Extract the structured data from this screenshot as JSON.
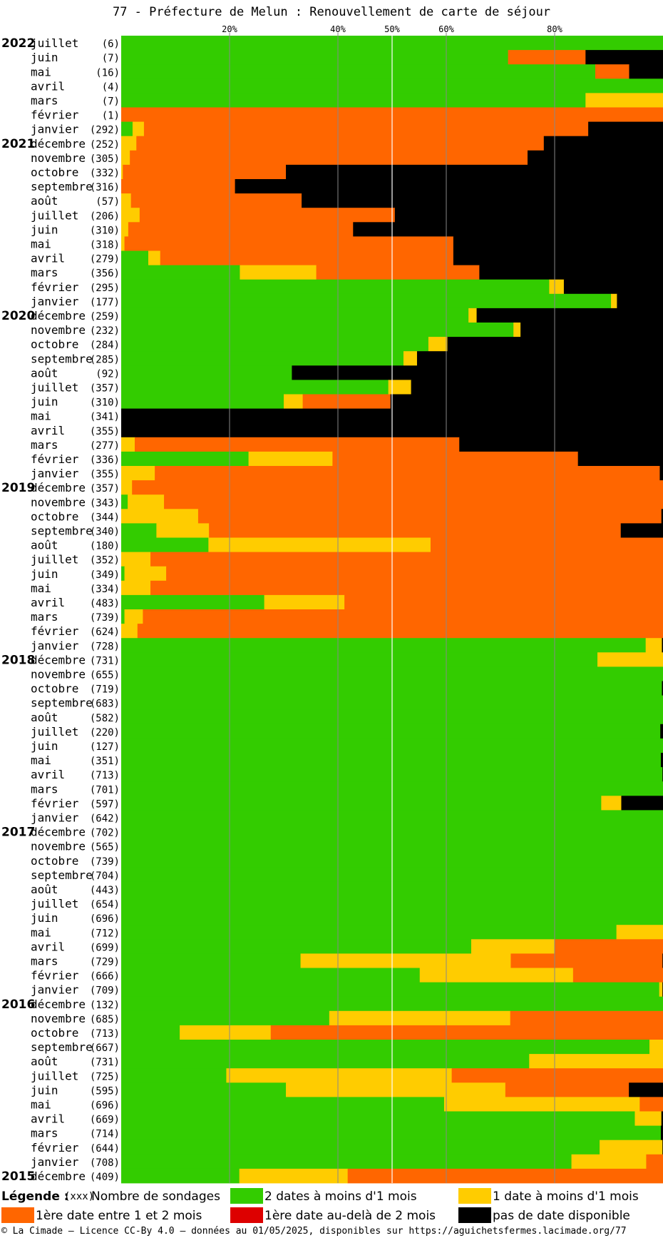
{
  "title": "77 - Préfecture de Melun : Renouvellement de carte de séjour",
  "colors": {
    "green": "#33cc00",
    "yellow": "#ffcc00",
    "orange": "#ff6600",
    "red": "#dd0000",
    "black": "#000000",
    "gridline": "#888888",
    "gridline50": "#ffffff"
  },
  "legend": {
    "label": "Légende :",
    "count_symbol": "(xxx)",
    "count_label": "Nombre de sondages",
    "items": [
      {
        "label": "2 dates à moins d'1 mois",
        "color": "#33cc00"
      },
      {
        "label": "1 date à moins d'1 mois",
        "color": "#ffcc00"
      },
      {
        "label": "1ère date entre 1 et 2 mois",
        "color": "#ff6600"
      },
      {
        "label": "1ère date au-delà de 2 mois",
        "color": "#dd0000"
      },
      {
        "label": "pas de date disponible",
        "color": "#000000"
      }
    ]
  },
  "footer": "© La Cimade – Licence CC-By 4.0 – données au 01/05/2025, disponibles sur https://aguichetsfermes.lacimade.org/77",
  "chart_data": {
    "type": "bar",
    "orientation": "horizontal",
    "stacked": true,
    "percent_stacked": true,
    "x_ticks": [
      "20%",
      "40%",
      "50%",
      "60%",
      "80%"
    ],
    "x_tick_values": [
      20,
      40,
      50,
      60,
      80
    ],
    "xlim": [
      0,
      100
    ],
    "series_order": [
      "2 dates à moins d'1 mois",
      "1 date à moins d'1 mois",
      "1ère date entre 1 et 2 mois",
      "1ère date au-delà de 2 mois",
      "pas de date disponible"
    ],
    "rows": [
      {
        "year": "2022",
        "month": "juillet",
        "count": "(6)",
        "values": [
          100,
          0,
          0,
          0,
          0
        ]
      },
      {
        "year": "",
        "month": "juin",
        "count": "(7)",
        "values": [
          71.4,
          0,
          14.3,
          0,
          14.3
        ]
      },
      {
        "year": "",
        "month": "mai",
        "count": "(16)",
        "values": [
          87.5,
          0,
          6.25,
          0,
          6.25
        ]
      },
      {
        "year": "",
        "month": "avril",
        "count": "(4)",
        "values": [
          100,
          0,
          0,
          0,
          0
        ]
      },
      {
        "year": "",
        "month": "mars",
        "count": "(7)",
        "values": [
          85.7,
          14.3,
          0,
          0,
          0
        ]
      },
      {
        "year": "",
        "month": "février",
        "count": "(1)",
        "values": [
          0,
          0,
          100,
          0,
          0
        ]
      },
      {
        "year": "",
        "month": "janvier",
        "count": "(292)",
        "values": [
          2.1,
          2.1,
          82,
          0,
          13.8
        ]
      },
      {
        "year": "2021",
        "month": "décembre",
        "count": "(252)",
        "values": [
          0,
          2.8,
          75.2,
          0,
          22
        ]
      },
      {
        "year": "",
        "month": "novembre",
        "count": "(305)",
        "values": [
          0,
          1.6,
          73.4,
          0,
          25
        ]
      },
      {
        "year": "",
        "month": "octobre",
        "count": "(332)",
        "values": [
          0,
          0.3,
          30.1,
          0,
          69.6
        ]
      },
      {
        "year": "",
        "month": "septembre",
        "count": "(316)",
        "values": [
          0,
          0,
          21,
          0,
          79
        ]
      },
      {
        "year": "",
        "month": "août",
        "count": "(57)",
        "values": [
          0,
          1.8,
          31.5,
          0,
          66.7
        ]
      },
      {
        "year": "",
        "month": "juillet",
        "count": "(206)",
        "values": [
          0,
          3.4,
          47.1,
          0,
          49.5
        ]
      },
      {
        "year": "",
        "month": "juin",
        "count": "(310)",
        "values": [
          0,
          1.3,
          41.5,
          0,
          57.2
        ]
      },
      {
        "year": "",
        "month": "mai",
        "count": "(318)",
        "values": [
          0,
          0.6,
          60.7,
          0,
          38.7
        ]
      },
      {
        "year": "",
        "month": "avril",
        "count": "(279)",
        "values": [
          5,
          2.2,
          54.1,
          0,
          38.7
        ]
      },
      {
        "year": "",
        "month": "mars",
        "count": "(356)",
        "values": [
          21.9,
          14.1,
          30.1,
          0,
          33.9
        ]
      },
      {
        "year": "",
        "month": "février",
        "count": "(295)",
        "values": [
          79,
          2.7,
          0,
          0,
          18.3
        ]
      },
      {
        "year": "",
        "month": "janvier",
        "count": "(177)",
        "values": [
          90.4,
          1.1,
          0,
          0,
          8.5
        ]
      },
      {
        "year": "2020",
        "month": "décembre",
        "count": "(259)",
        "values": [
          64.1,
          1.5,
          0,
          0,
          34.4
        ]
      },
      {
        "year": "",
        "month": "novembre",
        "count": "(232)",
        "values": [
          72.4,
          1.3,
          0,
          0,
          26.3
        ]
      },
      {
        "year": "",
        "month": "octobre",
        "count": "(284)",
        "values": [
          56.7,
          3.5,
          0,
          0,
          39.8
        ]
      },
      {
        "year": "",
        "month": "septembre",
        "count": "(285)",
        "values": [
          52.1,
          2.5,
          0,
          0,
          45.4
        ]
      },
      {
        "year": "",
        "month": "août",
        "count": "(92)",
        "values": [
          31.5,
          0,
          0,
          0,
          68.5
        ]
      },
      {
        "year": "",
        "month": "juillet",
        "count": "(357)",
        "values": [
          49.3,
          4.2,
          0,
          0,
          46.5
        ]
      },
      {
        "year": "",
        "month": "juin",
        "count": "(310)",
        "values": [
          30,
          3.5,
          16.2,
          0,
          50.3
        ]
      },
      {
        "year": "",
        "month": "mai",
        "count": "(341)",
        "values": [
          0,
          0,
          0,
          0,
          100
        ]
      },
      {
        "year": "",
        "month": "avril",
        "count": "(355)",
        "values": [
          0,
          0,
          0,
          0,
          100
        ]
      },
      {
        "year": "",
        "month": "mars",
        "count": "(277)",
        "values": [
          0,
          2.5,
          59.9,
          0,
          37.6
        ]
      },
      {
        "year": "",
        "month": "février",
        "count": "(336)",
        "values": [
          23.5,
          15.5,
          45.3,
          0,
          15.7
        ]
      },
      {
        "year": "",
        "month": "janvier",
        "count": "(355)",
        "values": [
          0,
          6.2,
          93.2,
          0,
          0.6
        ]
      },
      {
        "year": "2019",
        "month": "décembre",
        "count": "(357)",
        "values": [
          0,
          2,
          98,
          0,
          0
        ]
      },
      {
        "year": "",
        "month": "novembre",
        "count": "(343)",
        "values": [
          1.2,
          6.7,
          92.1,
          0,
          0
        ]
      },
      {
        "year": "",
        "month": "octobre",
        "count": "(344)",
        "values": [
          0,
          14.2,
          85.5,
          0,
          0.3
        ]
      },
      {
        "year": "",
        "month": "septembre",
        "count": "(340)",
        "values": [
          6.5,
          9.7,
          76,
          0,
          7.8
        ]
      },
      {
        "year": "",
        "month": "août",
        "count": "(180)",
        "values": [
          16.1,
          41,
          42.9,
          0,
          0
        ]
      },
      {
        "year": "",
        "month": "juillet",
        "count": "(352)",
        "values": [
          0,
          5.4,
          94.6,
          0,
          0
        ]
      },
      {
        "year": "",
        "month": "juin",
        "count": "(349)",
        "values": [
          0.6,
          7.7,
          91.7,
          0,
          0
        ]
      },
      {
        "year": "",
        "month": "mai",
        "count": "(334)",
        "values": [
          0,
          5.4,
          94.6,
          0,
          0
        ]
      },
      {
        "year": "",
        "month": "avril",
        "count": "(483)",
        "values": [
          26.4,
          14.8,
          58.8,
          0,
          0
        ]
      },
      {
        "year": "",
        "month": "mars",
        "count": "(739)",
        "values": [
          0.6,
          3.4,
          96,
          0,
          0
        ]
      },
      {
        "year": "",
        "month": "février",
        "count": "(624)",
        "values": [
          0,
          3,
          97,
          0,
          0
        ]
      },
      {
        "year": "",
        "month": "janvier",
        "count": "(728)",
        "values": [
          96.8,
          3,
          0,
          0,
          0.2
        ]
      },
      {
        "year": "2018",
        "month": "décembre",
        "count": "(731)",
        "values": [
          87.9,
          12.1,
          0,
          0,
          0
        ]
      },
      {
        "year": "",
        "month": "novembre",
        "count": "(655)",
        "values": [
          100,
          0,
          0,
          0,
          0
        ]
      },
      {
        "year": "",
        "month": "octobre",
        "count": "(719)",
        "values": [
          99.8,
          0,
          0,
          0,
          0.2
        ]
      },
      {
        "year": "",
        "month": "septembre",
        "count": "(683)",
        "values": [
          100,
          0,
          0,
          0,
          0
        ]
      },
      {
        "year": "",
        "month": "août",
        "count": "(582)",
        "values": [
          100,
          0,
          0,
          0,
          0
        ]
      },
      {
        "year": "",
        "month": "juillet",
        "count": "(220)",
        "values": [
          99.5,
          0,
          0,
          0,
          0.5
        ]
      },
      {
        "year": "",
        "month": "juin",
        "count": "(127)",
        "values": [
          100,
          0,
          0,
          0,
          0
        ]
      },
      {
        "year": "",
        "month": "mai",
        "count": "(351)",
        "values": [
          99.6,
          0,
          0,
          0,
          0.4
        ]
      },
      {
        "year": "",
        "month": "avril",
        "count": "(713)",
        "values": [
          99.9,
          0,
          0,
          0,
          0.1
        ]
      },
      {
        "year": "",
        "month": "mars",
        "count": "(701)",
        "values": [
          100,
          0,
          0,
          0,
          0
        ]
      },
      {
        "year": "",
        "month": "février",
        "count": "(597)",
        "values": [
          88.6,
          3.7,
          0,
          0,
          7.7
        ]
      },
      {
        "year": "",
        "month": "janvier",
        "count": "(642)",
        "values": [
          100,
          0,
          0,
          0,
          0
        ]
      },
      {
        "year": "2017",
        "month": "décembre",
        "count": "(702)",
        "values": [
          100,
          0,
          0,
          0,
          0
        ]
      },
      {
        "year": "",
        "month": "novembre",
        "count": "(565)",
        "values": [
          100,
          0,
          0,
          0,
          0
        ]
      },
      {
        "year": "",
        "month": "octobre",
        "count": "(739)",
        "values": [
          100,
          0,
          0,
          0,
          0
        ]
      },
      {
        "year": "",
        "month": "septembre",
        "count": "(704)",
        "values": [
          100,
          0,
          0,
          0,
          0
        ]
      },
      {
        "year": "",
        "month": "août",
        "count": "(443)",
        "values": [
          100,
          0,
          0,
          0,
          0
        ]
      },
      {
        "year": "",
        "month": "juillet",
        "count": "(654)",
        "values": [
          100,
          0,
          0,
          0,
          0
        ]
      },
      {
        "year": "",
        "month": "juin",
        "count": "(696)",
        "values": [
          100,
          0,
          0,
          0,
          0
        ]
      },
      {
        "year": "",
        "month": "mai",
        "count": "(712)",
        "values": [
          91.4,
          8.6,
          0,
          0,
          0
        ]
      },
      {
        "year": "",
        "month": "avril",
        "count": "(699)",
        "values": [
          64.6,
          15.4,
          20,
          0,
          0
        ]
      },
      {
        "year": "",
        "month": "mars",
        "count": "(729)",
        "values": [
          33.1,
          38.8,
          28,
          0,
          0.1
        ]
      },
      {
        "year": "",
        "month": "février",
        "count": "(666)",
        "values": [
          55.1,
          28.3,
          16.6,
          0,
          0
        ]
      },
      {
        "year": "",
        "month": "janvier",
        "count": "(709)",
        "values": [
          99.3,
          0.6,
          0,
          0,
          0.1
        ]
      },
      {
        "year": "2016",
        "month": "décembre",
        "count": "(132)",
        "values": [
          100,
          0,
          0,
          0,
          0
        ]
      },
      {
        "year": "",
        "month": "novembre",
        "count": "(685)",
        "values": [
          38.4,
          33.4,
          28.2,
          0,
          0
        ]
      },
      {
        "year": "",
        "month": "octobre",
        "count": "(713)",
        "values": [
          10.8,
          16.8,
          72.4,
          0,
          0
        ]
      },
      {
        "year": "",
        "month": "septembre",
        "count": "(667)",
        "values": [
          97.5,
          2.5,
          0,
          0,
          0
        ]
      },
      {
        "year": "",
        "month": "août",
        "count": "(731)",
        "values": [
          75.3,
          24.7,
          0,
          0,
          0
        ]
      },
      {
        "year": "",
        "month": "juillet",
        "count": "(725)",
        "values": [
          19.4,
          41.6,
          39,
          0,
          0
        ]
      },
      {
        "year": "",
        "month": "juin",
        "count": "(595)",
        "values": [
          30.4,
          40.5,
          22.8,
          0,
          6.3
        ]
      },
      {
        "year": "",
        "month": "mai",
        "count": "(696)",
        "values": [
          59.6,
          36.1,
          4.3,
          0,
          0
        ]
      },
      {
        "year": "",
        "month": "avril",
        "count": "(669)",
        "values": [
          94.8,
          4.9,
          0,
          0,
          0.3
        ]
      },
      {
        "year": "",
        "month": "mars",
        "count": "(714)",
        "values": [
          99.6,
          0,
          0,
          0,
          0.4
        ]
      },
      {
        "year": "",
        "month": "février",
        "count": "(644)",
        "values": [
          88.3,
          11.6,
          0,
          0,
          0.1
        ]
      },
      {
        "year": "",
        "month": "janvier",
        "count": "(708)",
        "values": [
          83.1,
          13.8,
          3.1,
          0,
          0
        ]
      },
      {
        "year": "2015",
        "month": "décembre",
        "count": "(409)",
        "values": [
          21.8,
          20,
          58.2,
          0,
          0
        ]
      }
    ]
  }
}
